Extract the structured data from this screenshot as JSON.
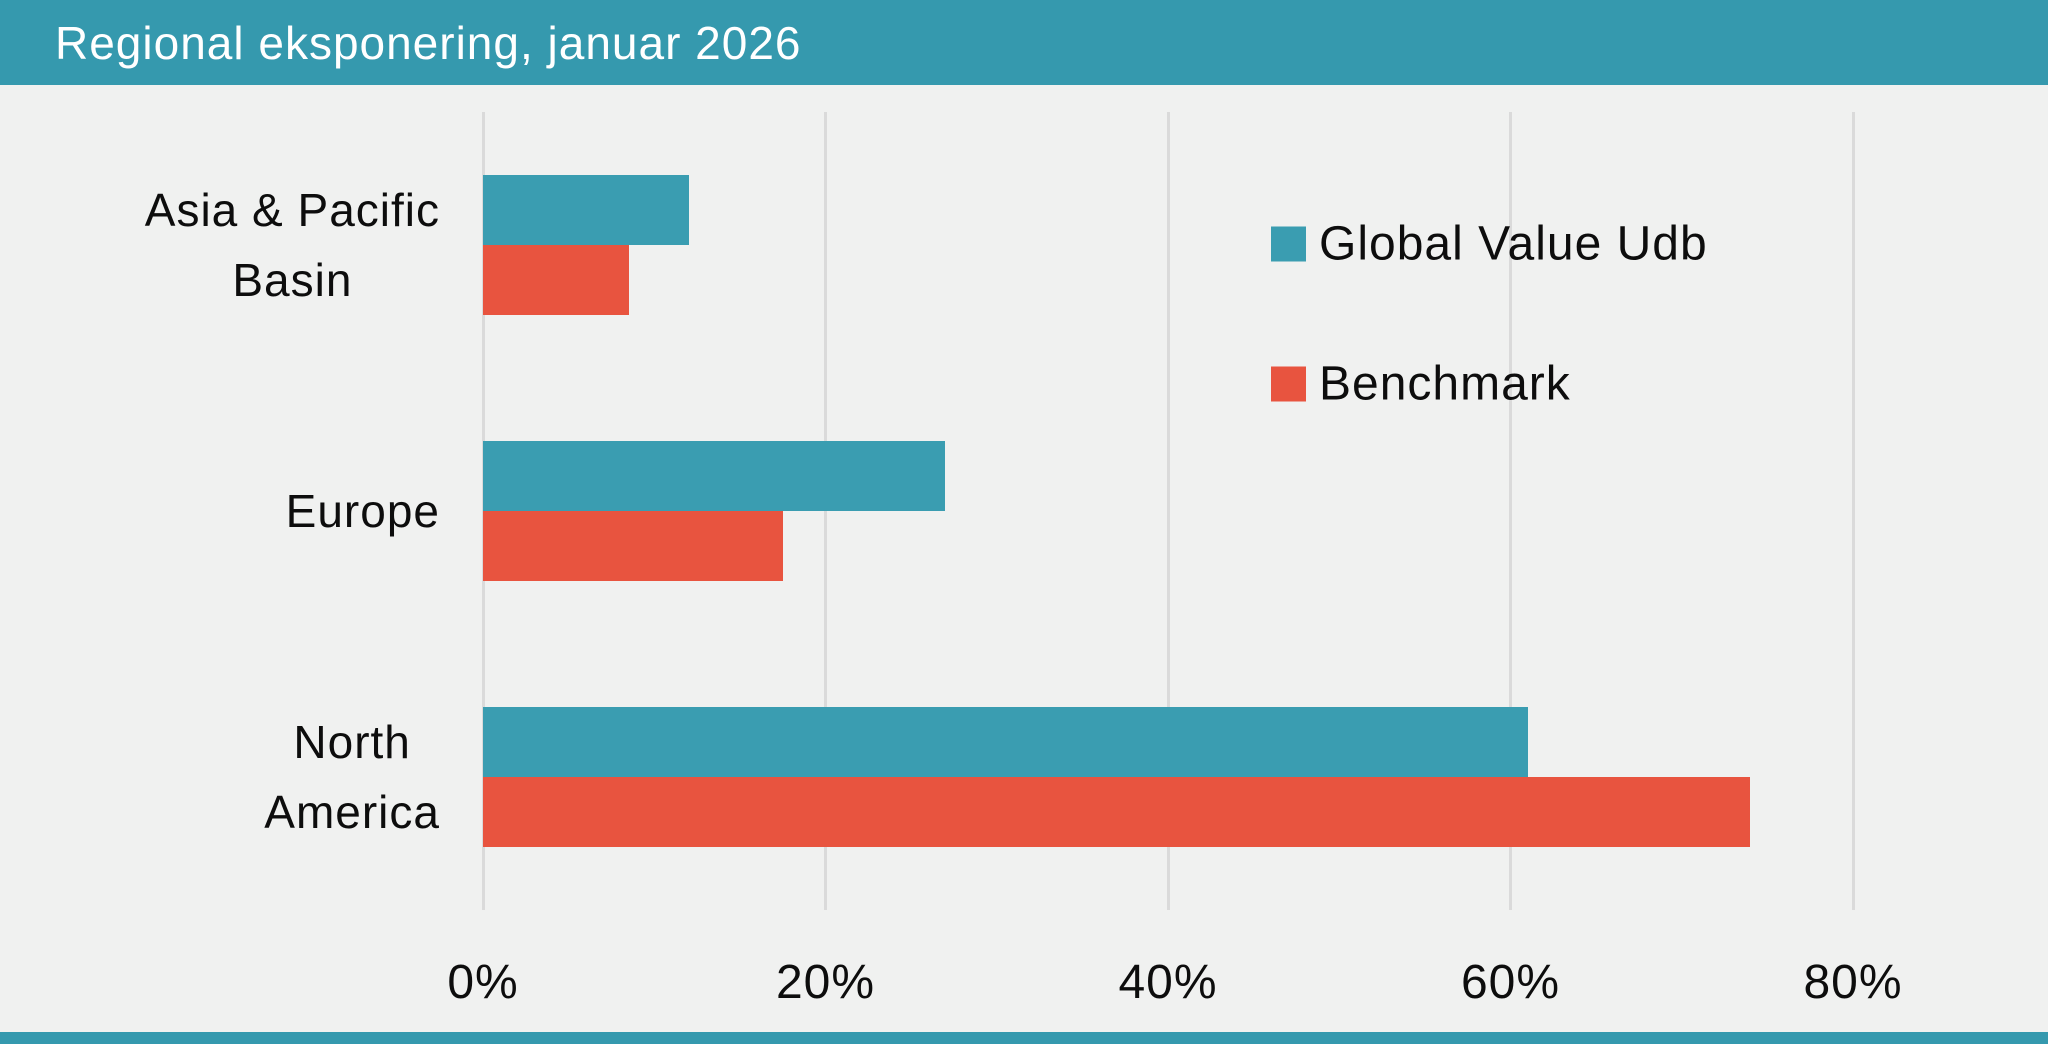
{
  "header": {
    "title": "Regional eksponering, januar 2026"
  },
  "colors": {
    "accent_teal": "#3A9DB1",
    "accent_red": "#E8543F",
    "header_bg": "#3599AE",
    "background": "#F0F1F0",
    "gridline": "#DADADA",
    "text": "#0D0D0D",
    "title_text": "#FFFFFF"
  },
  "chart_data": {
    "type": "bar",
    "orientation": "horizontal",
    "title": "Regional eksponering, januar 2026",
    "categories": [
      "Asia & Pacific Basin",
      "Europe",
      "North America"
    ],
    "category_label_lines": [
      [
        "Asia & Pacific",
        "Basin"
      ],
      [
        "Europe"
      ],
      [
        "North",
        "America"
      ]
    ],
    "series": [
      {
        "name": "Global Value Udb",
        "color": "#3A9DB1",
        "values": [
          12,
          27,
          61
        ]
      },
      {
        "name": "Benchmark",
        "color": "#E8543F",
        "values": [
          8.5,
          17.5,
          74
        ]
      }
    ],
    "xlabel": "",
    "ylabel": "",
    "x_ticks": [
      "0%",
      "20%",
      "40%",
      "60%",
      "80%"
    ],
    "x_tick_values": [
      0,
      20,
      40,
      60,
      80
    ],
    "xlim": [
      0,
      91.4
    ],
    "grid": true,
    "legend_position": "upper-right"
  },
  "legend": {
    "items": [
      {
        "label": "Global Value Udb",
        "color": "#3A9DB1"
      },
      {
        "label": "Benchmark",
        "color": "#E8543F"
      }
    ]
  }
}
